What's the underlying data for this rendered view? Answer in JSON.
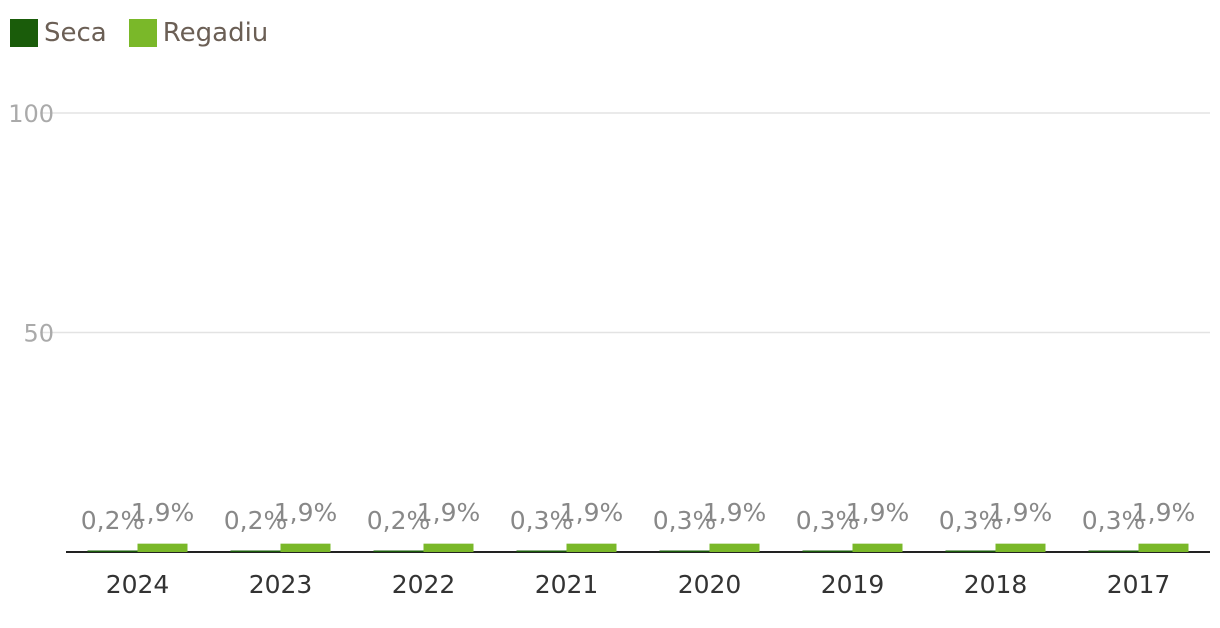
{
  "chart_data": {
    "type": "bar",
    "categories": [
      "2024",
      "2023",
      "2022",
      "2021",
      "2020",
      "2019",
      "2018",
      "2017"
    ],
    "series": [
      {
        "name": "Seca",
        "color": "#1a5c0a",
        "values": [
          0.2,
          0.2,
          0.2,
          0.3,
          0.3,
          0.3,
          0.3,
          0.3
        ],
        "labels": [
          "0,2%",
          "0,2%",
          "0,2%",
          "0,3%",
          "0,3%",
          "0,3%",
          "0,3%",
          "0,3%"
        ]
      },
      {
        "name": "Regadiu",
        "color": "#7ab829",
        "values": [
          1.9,
          1.9,
          1.9,
          1.9,
          1.9,
          1.9,
          1.9,
          1.9
        ],
        "labels": [
          "1,9%",
          "1,9%",
          "1,9%",
          "1,9%",
          "1,9%",
          "1,9%",
          "1,9%",
          "1,9%"
        ]
      }
    ],
    "yticks": [
      "50",
      "100"
    ],
    "ylim": [
      0,
      100
    ],
    "grid": true,
    "legend_position": "top-left"
  }
}
